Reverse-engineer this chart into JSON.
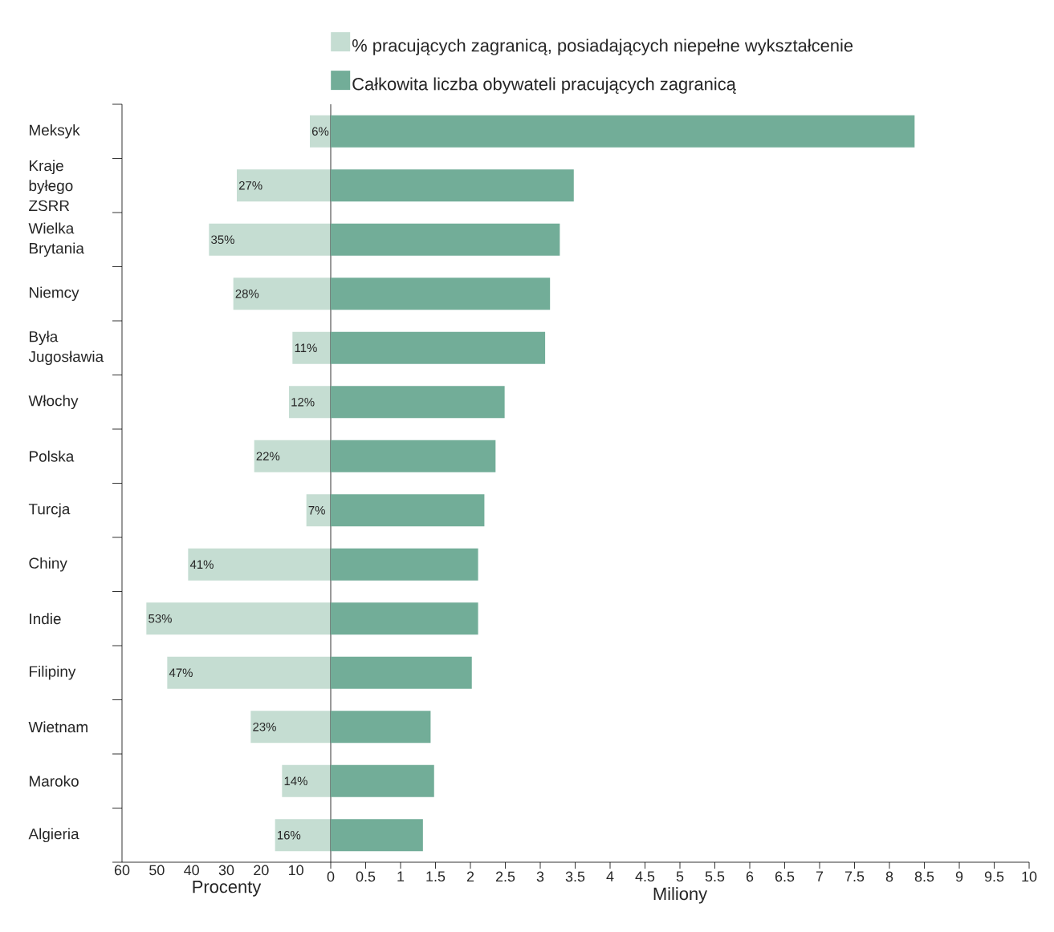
{
  "chart_data": [
    {
      "type": "bar",
      "orientation": "horizontal",
      "xlabel": "Procenty",
      "categories": [
        "Meksyk",
        "Kraje byłego ZSRR",
        "Wielka Brytania",
        "Niemcy",
        "Była Jugosławia",
        "Włochy",
        "Polska",
        "Turcja",
        "Chiny",
        "Indie",
        "Filipiny",
        "Wietnam",
        "Maroko",
        "Algieria"
      ],
      "xlim": [
        60,
        0
      ],
      "xticks": [
        60,
        50,
        40,
        30,
        20,
        10
      ],
      "legend": "top",
      "series": [
        {
          "name": "% pracujących zagranicą, posiadających niepełne wykształcenie",
          "color": "#c5ddd2",
          "values": [
            6,
            27,
            35,
            28,
            11,
            12,
            22,
            7,
            41,
            53,
            47,
            23,
            14,
            16
          ],
          "value_labels": [
            "6%",
            "27%",
            "35%",
            "28%",
            "11%",
            "12%",
            "22%",
            "7%",
            "41%",
            "53%",
            "47%",
            "23%",
            "14%",
            "16%"
          ]
        }
      ]
    },
    {
      "type": "bar",
      "orientation": "horizontal",
      "xlabel": "Miliony",
      "categories": [
        null,
        null,
        null,
        null,
        null,
        null,
        null,
        null,
        null,
        null,
        null,
        null,
        null,
        null
      ],
      "xlim": [
        0,
        10
      ],
      "xticks": [
        0,
        0.5,
        1,
        1.5,
        2,
        2.5,
        3,
        3.5,
        4,
        4.5,
        5,
        5.5,
        6,
        6.5,
        7,
        7.5,
        8,
        8.5,
        9,
        9.5,
        10
      ],
      "tick_labels": "x",
      "legend": "top",
      "series": [
        {
          "name": "Całkowita liczba obywateli pracujących zagranicą",
          "color": "#72ad98",
          "values": [
            8.36,
            3.48,
            3.28,
            3.14,
            3.07,
            2.49,
            2.36,
            2.2,
            2.11,
            2.11,
            2.02,
            1.43,
            1.48,
            1.32
          ]
        }
      ]
    }
  ]
}
